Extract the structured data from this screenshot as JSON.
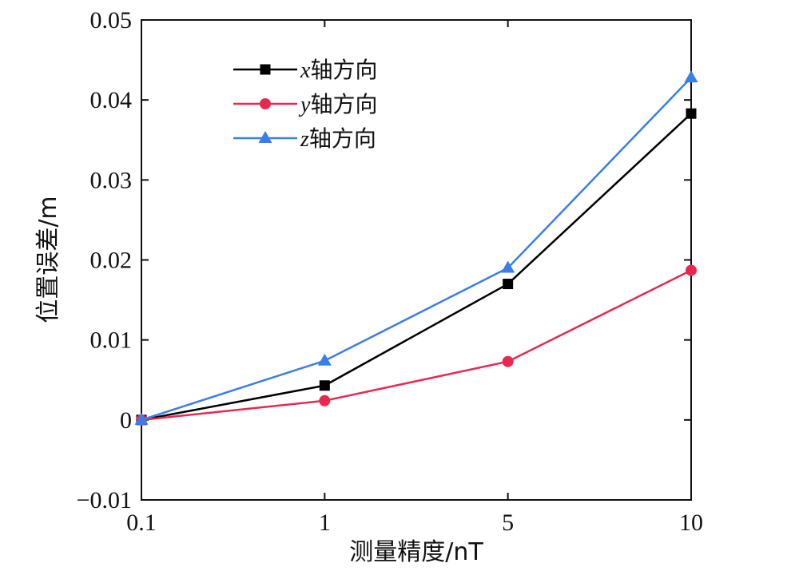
{
  "chart_data": {
    "type": "line",
    "categories": [
      "0.1",
      "1",
      "5",
      "10"
    ],
    "series": [
      {
        "name": "x轴方向",
        "var": "x",
        "suffix": "轴方向",
        "color": "#000000",
        "marker": "square",
        "values": [
          0,
          0.0043,
          0.017,
          0.0383
        ]
      },
      {
        "name": "y轴方向",
        "var": "y",
        "suffix": "轴方向",
        "color": "#e8294f",
        "marker": "circle",
        "values": [
          0,
          0.0024,
          0.0073,
          0.0187
        ]
      },
      {
        "name": "z轴方向",
        "var": "z",
        "suffix": "轴方向",
        "color": "#3a7ee8",
        "marker": "triangle",
        "values": [
          0,
          0.0074,
          0.019,
          0.0428
        ]
      }
    ],
    "xlabel": "测量精度/nT",
    "ylabel": "位置误差/m",
    "ylim": [
      -0.01,
      0.05
    ],
    "yticks": [
      -0.01,
      0,
      0.01,
      0.02,
      0.03,
      0.04,
      0.05
    ],
    "ytick_labels": [
      "−0.01",
      "0",
      "0.01",
      "0.02",
      "0.03",
      "0.04",
      "0.05"
    ],
    "grid": false,
    "legend_position": "top-left"
  }
}
